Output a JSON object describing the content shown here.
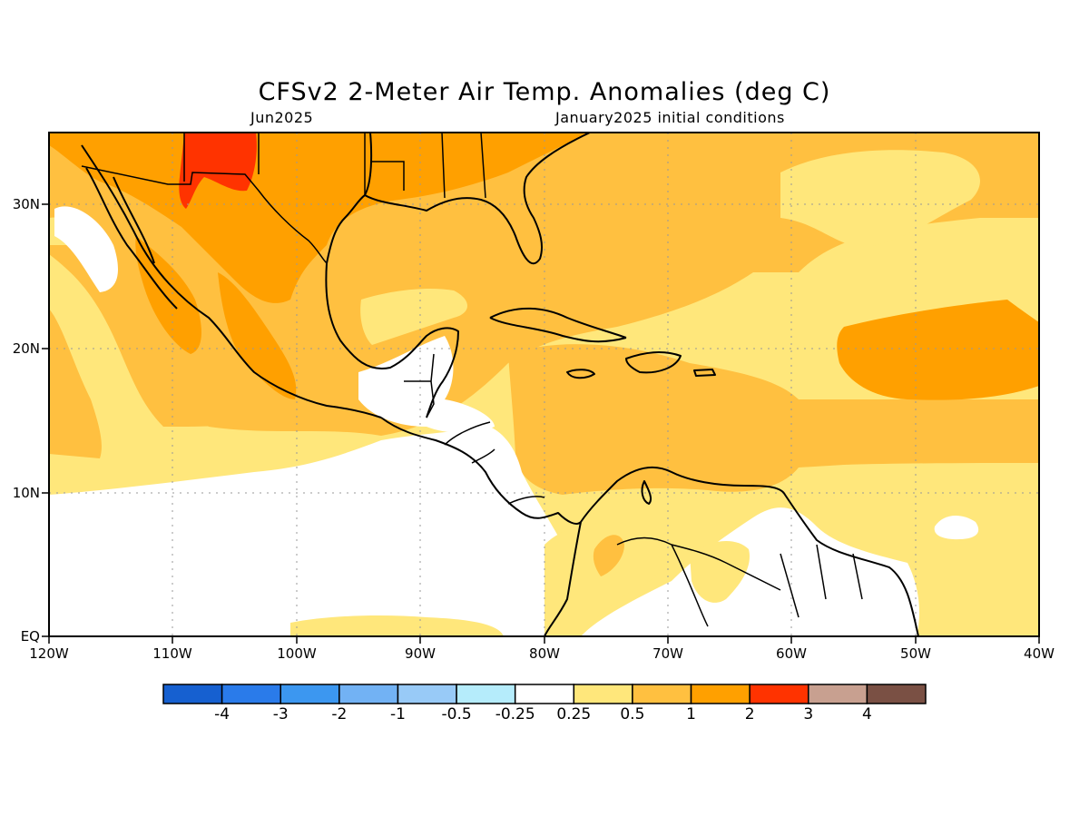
{
  "title": "CFSv2 2-Meter Air Temp. Anomalies (deg C)",
  "subtitle_left": "Jun2025",
  "subtitle_right": "January2025 initial conditions",
  "lat_labels": [
    "30N",
    "20N",
    "10N",
    "EQ"
  ],
  "lon_labels": [
    "120W",
    "110W",
    "100W",
    "90W",
    "80W",
    "70W",
    "60W",
    "50W",
    "40W"
  ],
  "colorbar": {
    "colors": [
      "#1660d0",
      "#2a7bea",
      "#3c97f0",
      "#72b2f4",
      "#98caf7",
      "#b5ecfb",
      "#ffffff",
      "#ffe77b",
      "#ffc040",
      "#ffa000",
      "#ff3300",
      "#c8a090",
      "#7a5044"
    ],
    "labels": [
      "-4",
      "-3",
      "-2",
      "-1",
      "-0.5",
      "-0.25",
      "0.25",
      "0.5",
      "1",
      "2",
      "3",
      "4"
    ]
  },
  "legend_colors": {
    "white": "#ffffff",
    "yellow": "#ffe77b",
    "light_orange": "#ffc040",
    "orange": "#ffa000",
    "red": "#ff3300"
  }
}
